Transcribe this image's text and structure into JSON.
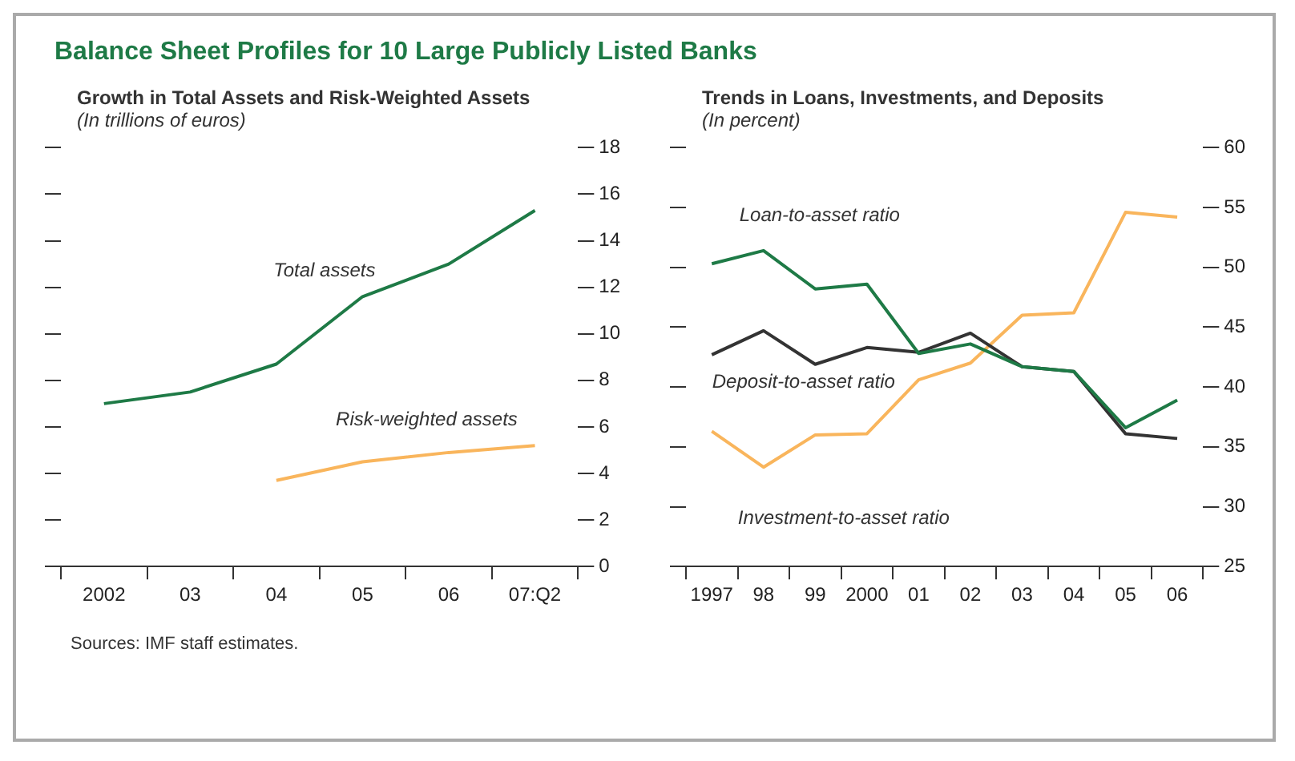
{
  "chart_data": [
    {
      "type": "line",
      "title": "Balance Sheet Profiles for 10 Large Publicly Listed Banks",
      "subtitle": "Growth in Total Assets and Risk-Weighted Assets",
      "ylabel": "(In trillions of euros)",
      "categories": [
        "2002",
        "03",
        "04",
        "05",
        "06",
        "07:Q2"
      ],
      "series": [
        {
          "name": "Total assets",
          "color": "#1e7a46",
          "values": [
            7.0,
            7.5,
            8.7,
            11.6,
            13.0,
            15.3
          ]
        },
        {
          "name": "Risk-weighted assets",
          "color": "#f9b55c",
          "values": [
            null,
            null,
            3.7,
            4.5,
            4.9,
            5.2
          ]
        }
      ],
      "ylim": [
        0,
        18
      ],
      "yticks": [
        0,
        2,
        4,
        6,
        8,
        10,
        12,
        14,
        16,
        18
      ]
    },
    {
      "type": "line",
      "subtitle": "Trends in Loans, Investments, and Deposits",
      "ylabel": "(In percent)",
      "categories": [
        "1997",
        "98",
        "99",
        "2000",
        "01",
        "02",
        "03",
        "04",
        "05",
        "06"
      ],
      "series": [
        {
          "name": "Loan-to-asset ratio",
          "color": "#1e7a46",
          "values": [
            50.3,
            51.4,
            48.2,
            48.6,
            42.8,
            43.6,
            41.7,
            41.3,
            36.6,
            38.9
          ]
        },
        {
          "name": "Deposit-to-asset ratio",
          "color": "#333333",
          "values": [
            42.7,
            44.7,
            41.9,
            43.3,
            42.9,
            44.5,
            41.7,
            41.3,
            36.1,
            35.7
          ]
        },
        {
          "name": "Investment-to-asset ratio",
          "color": "#f9b55c",
          "values": [
            36.3,
            33.3,
            36.0,
            36.1,
            40.6,
            42.0,
            46.0,
            46.2,
            54.6,
            54.2
          ]
        }
      ],
      "ylim": [
        25,
        60
      ],
      "yticks": [
        25,
        30,
        35,
        40,
        45,
        50,
        55,
        60
      ],
      "annotations": [
        "Sources: IMF staff estimates."
      ]
    }
  ]
}
